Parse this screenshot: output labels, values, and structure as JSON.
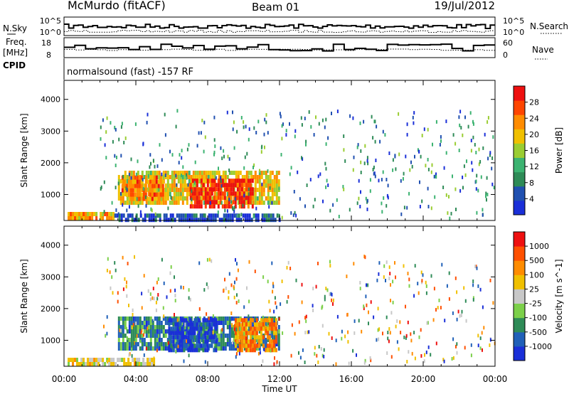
{
  "header": {
    "station": "McMurdo (fitACF)",
    "beam": "Beam 01",
    "date": "19/Jul/2012"
  },
  "panels": {
    "nsky": {
      "left_label": "N.Sky",
      "right_label": "N.Search",
      "ticks_left": [
        "10^5",
        "10^0"
      ],
      "ticks_right": [
        "10^5",
        "10^0"
      ]
    },
    "freq": {
      "left_label_1": "Freq.",
      "left_label_2": "[MHz]",
      "right_label": "Nave",
      "ticks_left": [
        "18",
        "8"
      ],
      "ticks_right": [
        "60",
        "0"
      ]
    },
    "cpid": {
      "label": "CPID",
      "value": "normalsound (fast) -157 RF"
    }
  },
  "chart_data": [
    {
      "type": "heatmap",
      "parameter": "Power",
      "ylabel": "Slant Range [km]",
      "xlabel": "Time UT",
      "x_ticks": [
        "00:00",
        "04:00",
        "08:00",
        "12:00",
        "16:00",
        "20:00",
        "00:00"
      ],
      "xlim_hours": [
        0,
        24
      ],
      "y_ticks": [
        1000,
        2000,
        3000,
        4000
      ],
      "ylim_km": [
        180,
        4600
      ],
      "colorbar": {
        "label": "Power [dB]",
        "ticks": [
          4,
          8,
          12,
          16,
          20,
          24,
          28
        ],
        "range": [
          0,
          32
        ],
        "colors": [
          "#1a2fd8",
          "#2050b0",
          "#2e8b57",
          "#3cb371",
          "#9acd32",
          "#f0c000",
          "#ff8c00",
          "#ff4500",
          "#ee1010"
        ]
      },
      "regions": [
        {
          "t0": 3.0,
          "t1": 12.0,
          "r0": 700,
          "r1": 1750,
          "level": 0.6
        },
        {
          "t0": 3.2,
          "t1": 5.5,
          "r0": 900,
          "r1": 1600,
          "level": 0.8
        },
        {
          "t0": 7.0,
          "t1": 10.5,
          "r0": 650,
          "r1": 1500,
          "level": 0.95
        },
        {
          "t0": 0.2,
          "t1": 2.8,
          "r0": 200,
          "r1": 450,
          "level": 0.7
        },
        {
          "t0": 2.8,
          "t1": 12.0,
          "r0": 200,
          "r1": 400,
          "level": 0.1
        }
      ]
    },
    {
      "type": "heatmap",
      "parameter": "Velocity",
      "ylabel": "Slant Range [km]",
      "xlabel": "Time UT",
      "x_ticks": [
        "00:00",
        "04:00",
        "08:00",
        "12:00",
        "16:00",
        "20:00",
        "00:00"
      ],
      "xlim_hours": [
        0,
        24
      ],
      "y_ticks": [
        1000,
        2000,
        3000,
        4000
      ],
      "ylim_km": [
        180,
        4600
      ],
      "colorbar": {
        "label": "Velocity [m s^-1]",
        "ticks": [
          1000,
          500,
          100,
          25,
          -25,
          -100,
          -500,
          -1000
        ],
        "colors": [
          "#1a2fd8",
          "#2060b8",
          "#2e8b57",
          "#7cd04a",
          "#c8c8c8",
          "#f0c000",
          "#ff8c00",
          "#ff5000",
          "#ee1010"
        ]
      },
      "regions": [
        {
          "t0": 3.0,
          "t1": 12.0,
          "r0": 700,
          "r1": 1750,
          "level": 0.2
        },
        {
          "t0": 5.8,
          "t1": 8.5,
          "r0": 700,
          "r1": 1700,
          "level": 0.05
        },
        {
          "t0": 9.5,
          "t1": 11.8,
          "r0": 700,
          "r1": 1700,
          "level": 0.75
        },
        {
          "t0": 0.2,
          "t1": 5.0,
          "r0": 200,
          "r1": 450,
          "level": 0.55
        }
      ]
    }
  ]
}
